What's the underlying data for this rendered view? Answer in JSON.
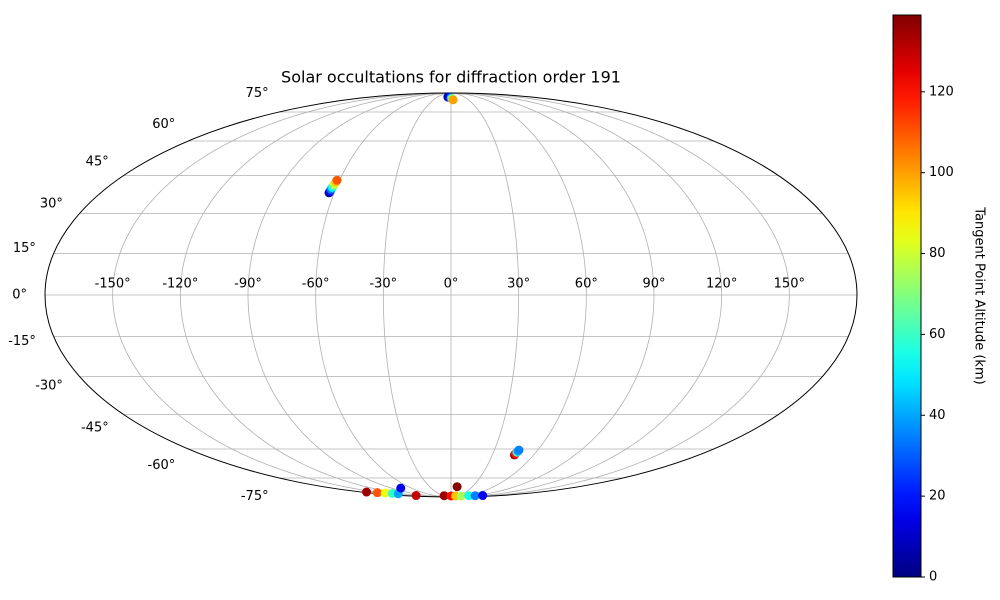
{
  "chart_data": {
    "type": "scatter",
    "projection": "mollweide",
    "title": "Solar occultations for diffraction order 191",
    "x": [
      -7,
      -4,
      0,
      2,
      3.4,
      -62.7,
      -62.5,
      -62.4,
      -62.2,
      -62,
      -61.8,
      -61.6,
      -61.4,
      46,
      46.2,
      46.5,
      46.8,
      47,
      -170,
      -158,
      -147,
      -139,
      -131,
      -76,
      -129,
      -27,
      0,
      20,
      45,
      70,
      95,
      117,
      8.6
    ],
    "y": [
      85.3,
      85,
      84.5,
      84,
      83,
      38,
      38.7,
      39.4,
      40.1,
      40.8,
      41.5,
      42.3,
      43,
      -62.8,
      -62.2,
      -61.5,
      -61,
      -60.5,
      -84.5,
      -85,
      -85.3,
      -85.7,
      -86,
      -81.5,
      -87.8,
      -88,
      -88.3,
      -88.3,
      -88.3,
      -88,
      -88,
      -87.8,
      -80.5
    ],
    "c": [
      5,
      15,
      40,
      70,
      100,
      5,
      20,
      35,
      50,
      65,
      80,
      95,
      110,
      135,
      120,
      60,
      40,
      35,
      135,
      110,
      85,
      60,
      40,
      15,
      130,
      135,
      120,
      95,
      75,
      55,
      35,
      15,
      138
    ],
    "xlim": [
      -180,
      180
    ],
    "ylim": [
      -90,
      90
    ],
    "xticks": [
      {
        "value": -150,
        "label": "-150°"
      },
      {
        "value": -120,
        "label": "-120°"
      },
      {
        "value": -90,
        "label": "-90°"
      },
      {
        "value": -60,
        "label": "-60°"
      },
      {
        "value": -30,
        "label": "-30°"
      },
      {
        "value": 0,
        "label": "0°"
      },
      {
        "value": 30,
        "label": "30°"
      },
      {
        "value": 60,
        "label": "60°"
      },
      {
        "value": 90,
        "label": "90°"
      },
      {
        "value": 120,
        "label": "120°"
      },
      {
        "value": 150,
        "label": "150°"
      }
    ],
    "yticks": [
      {
        "value": -75,
        "label": "-75°"
      },
      {
        "value": -60,
        "label": "-60°"
      },
      {
        "value": -45,
        "label": "-45°"
      },
      {
        "value": -30,
        "label": "-30°"
      },
      {
        "value": -15,
        "label": "-15°"
      },
      {
        "value": 0,
        "label": "0°"
      },
      {
        "value": 15,
        "label": "15°"
      },
      {
        "value": 30,
        "label": "30°"
      },
      {
        "value": 45,
        "label": "45°"
      },
      {
        "value": 60,
        "label": "60°"
      },
      {
        "value": 75,
        "label": "75°"
      }
    ],
    "grid": true,
    "colorbar": {
      "label": "Tangent Point Altitude (km)",
      "cmap": "jet",
      "clim": [
        0,
        139
      ],
      "ticks": [
        0,
        20,
        40,
        60,
        80,
        100,
        120
      ]
    }
  }
}
